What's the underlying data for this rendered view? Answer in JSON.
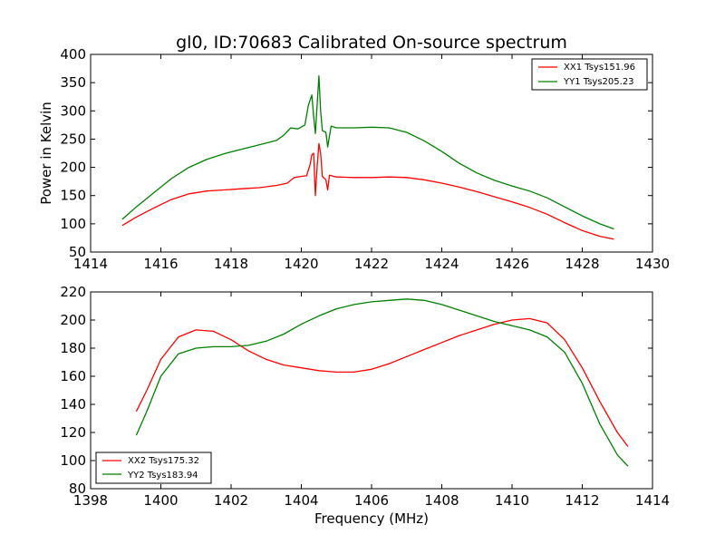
{
  "figure": {
    "title": "gl0, ID:70683 Calibrated On-source spectrum"
  },
  "chart_data": [
    {
      "type": "line",
      "title": "gl0, ID:70683 Calibrated On-source spectrum",
      "xlabel": "",
      "ylabel": "Power in Kelvin",
      "xlim": [
        1414,
        1430
      ],
      "ylim": [
        50,
        400
      ],
      "xticks": [
        1414,
        1416,
        1418,
        1420,
        1422,
        1424,
        1426,
        1428,
        1430
      ],
      "yticks": [
        50,
        100,
        150,
        200,
        250,
        300,
        350,
        400
      ],
      "grid": false,
      "legend_position": "top-right",
      "series": [
        {
          "name": "XX1 Tsys151.96",
          "color": "#ff0000",
          "x": [
            1414.9,
            1415.3,
            1415.8,
            1416.3,
            1416.8,
            1417.3,
            1417.8,
            1418.3,
            1418.8,
            1419.3,
            1419.6,
            1419.8,
            1420.0,
            1420.15,
            1420.25,
            1420.3,
            1420.35,
            1420.4,
            1420.45,
            1420.5,
            1420.55,
            1420.6,
            1420.7,
            1420.75,
            1420.8,
            1421.0,
            1421.5,
            1422.0,
            1422.5,
            1423.0,
            1423.5,
            1424.0,
            1424.5,
            1425.0,
            1425.5,
            1426.0,
            1426.5,
            1427.0,
            1427.5,
            1428.0,
            1428.5,
            1428.9
          ],
          "y": [
            97,
            112,
            128,
            143,
            153,
            158,
            160,
            162,
            164,
            168,
            172,
            182,
            184,
            185,
            205,
            222,
            225,
            150,
            200,
            242,
            225,
            184,
            178,
            160,
            186,
            183,
            182,
            182,
            183,
            182,
            178,
            172,
            165,
            157,
            148,
            139,
            129,
            117,
            102,
            88,
            78,
            73
          ]
        },
        {
          "name": "YY1 Tsys205.23",
          "color": "#008000",
          "x": [
            1414.9,
            1415.3,
            1415.8,
            1416.3,
            1416.8,
            1417.3,
            1417.8,
            1418.3,
            1418.8,
            1419.3,
            1419.5,
            1419.7,
            1419.9,
            1420.1,
            1420.2,
            1420.3,
            1420.35,
            1420.4,
            1420.45,
            1420.5,
            1420.55,
            1420.6,
            1420.7,
            1420.75,
            1420.85,
            1421.0,
            1421.5,
            1422.0,
            1422.5,
            1423.0,
            1423.5,
            1424.0,
            1424.5,
            1425.0,
            1425.5,
            1426.0,
            1426.5,
            1427.0,
            1427.5,
            1428.0,
            1428.5,
            1428.9
          ],
          "y": [
            108,
            130,
            155,
            180,
            200,
            214,
            224,
            232,
            240,
            248,
            257,
            270,
            268,
            275,
            310,
            328,
            290,
            260,
            310,
            362,
            300,
            265,
            262,
            236,
            273,
            270,
            270,
            271,
            270,
            262,
            247,
            228,
            207,
            190,
            177,
            167,
            158,
            146,
            130,
            114,
            100,
            91
          ]
        }
      ]
    },
    {
      "type": "line",
      "title": "",
      "xlabel": "Frequency (MHz)",
      "ylabel": "",
      "xlim": [
        1398,
        1414
      ],
      "ylim": [
        80,
        220
      ],
      "xticks": [
        1398,
        1400,
        1402,
        1404,
        1406,
        1408,
        1410,
        1412,
        1414
      ],
      "yticks": [
        80,
        100,
        120,
        140,
        160,
        180,
        200,
        220
      ],
      "grid": false,
      "legend_position": "bottom-left",
      "series": [
        {
          "name": "XX2 Tsys175.32",
          "color": "#ff0000",
          "x": [
            1399.3,
            1399.6,
            1400.0,
            1400.5,
            1401.0,
            1401.5,
            1402.0,
            1402.5,
            1403.0,
            1403.5,
            1404.0,
            1404.5,
            1405.0,
            1405.5,
            1406.0,
            1406.5,
            1407.0,
            1407.5,
            1408.0,
            1408.5,
            1409.0,
            1409.5,
            1410.0,
            1410.5,
            1411.0,
            1411.5,
            1412.0,
            1412.5,
            1413.0,
            1413.3
          ],
          "y": [
            135,
            150,
            172,
            188,
            193,
            192,
            186,
            178,
            172,
            168,
            166,
            164,
            163,
            163,
            165,
            169,
            174,
            179,
            184,
            189,
            193,
            197,
            200,
            201,
            198,
            186,
            166,
            142,
            120,
            110
          ]
        },
        {
          "name": "YY2 Tsys183.94",
          "color": "#008000",
          "x": [
            1399.3,
            1399.6,
            1400.0,
            1400.5,
            1401.0,
            1401.5,
            1402.0,
            1402.5,
            1403.0,
            1403.5,
            1404.0,
            1404.5,
            1405.0,
            1405.5,
            1406.0,
            1406.5,
            1407.0,
            1407.5,
            1408.0,
            1408.5,
            1409.0,
            1409.5,
            1410.0,
            1410.5,
            1411.0,
            1411.5,
            1412.0,
            1412.5,
            1413.0,
            1413.3
          ],
          "y": [
            118,
            135,
            160,
            176,
            180,
            181,
            181,
            182,
            185,
            190,
            197,
            203,
            208,
            211,
            213,
            214,
            215,
            214,
            211,
            207,
            203,
            199,
            196,
            193,
            188,
            177,
            155,
            126,
            104,
            96
          ]
        }
      ]
    }
  ]
}
